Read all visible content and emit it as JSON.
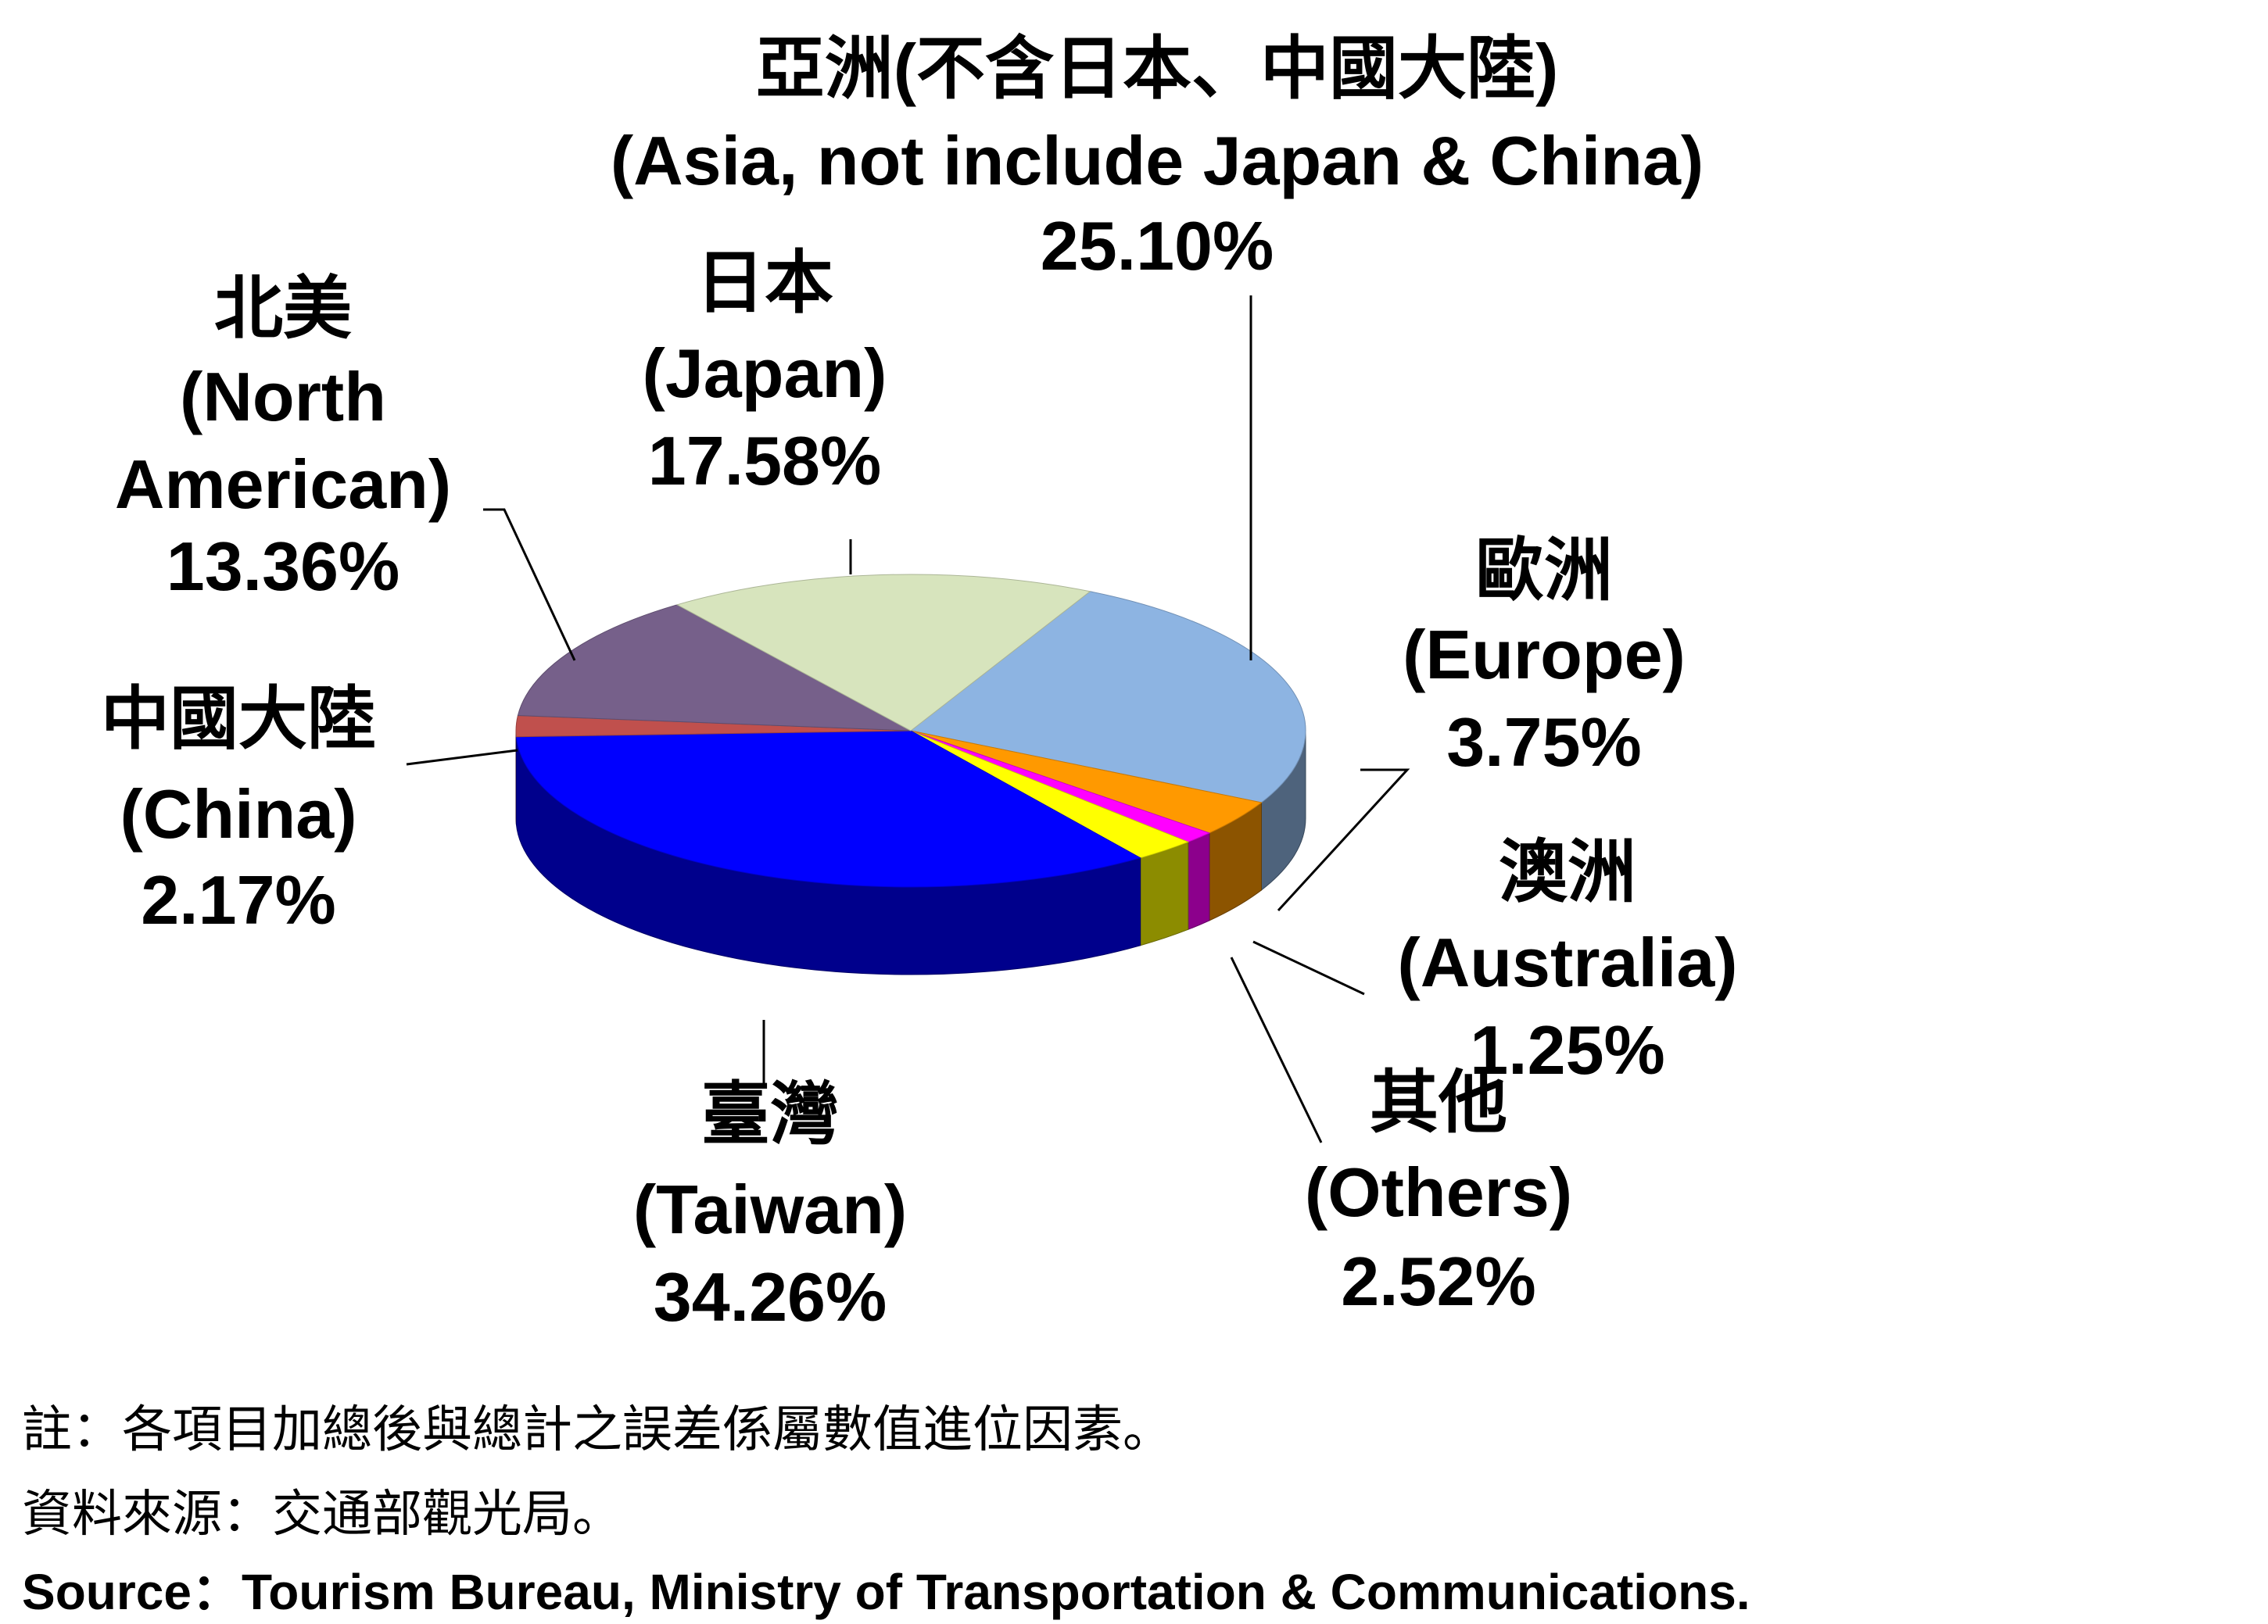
{
  "chart_data": {
    "type": "pie",
    "style": "3d-exploded-depth",
    "legend": "none",
    "slices": [
      {
        "zh": "亞洲(不含日本、中國大陸)",
        "en": "(Asia, not include Japan & China)",
        "value": 25.1,
        "pct_label": "25.10%",
        "color": "#8db4e2"
      },
      {
        "zh": "歐洲",
        "en": "(Europe)",
        "value": 3.75,
        "pct_label": "3.75%",
        "color": "#ff9900"
      },
      {
        "zh": "澳洲",
        "en": "(Australia)",
        "value": 1.25,
        "pct_label": "1.25%",
        "color": "#ff00ff"
      },
      {
        "zh": "其他",
        "en": "(Others)",
        "value": 2.52,
        "pct_label": "2.52%",
        "color": "#ffff00"
      },
      {
        "zh": "臺灣",
        "en": "(Taiwan)",
        "value": 34.26,
        "pct_label": "34.26%",
        "color": "#0000ff"
      },
      {
        "zh": "中國大陸",
        "en": "(China)",
        "value": 2.17,
        "pct_label": "2.17%",
        "color": "#c0504d"
      },
      {
        "zh": "北美",
        "en": "(North American)",
        "en_lines": [
          "(North",
          "American)"
        ],
        "value": 13.36,
        "pct_label": "13.36%",
        "color": "#76608a"
      },
      {
        "zh": "日本",
        "en": "(Japan)",
        "value": 17.58,
        "pct_label": "17.58%",
        "color": "#d7e4bd"
      }
    ]
  },
  "footnotes": {
    "note": "註：各項目加總後與總計之誤差係屬數值進位因素。",
    "source_zh": "資料來源：交通部觀光局。",
    "source_en": "Source：Tourism Bureau, Ministry of Transportation & Communications."
  }
}
